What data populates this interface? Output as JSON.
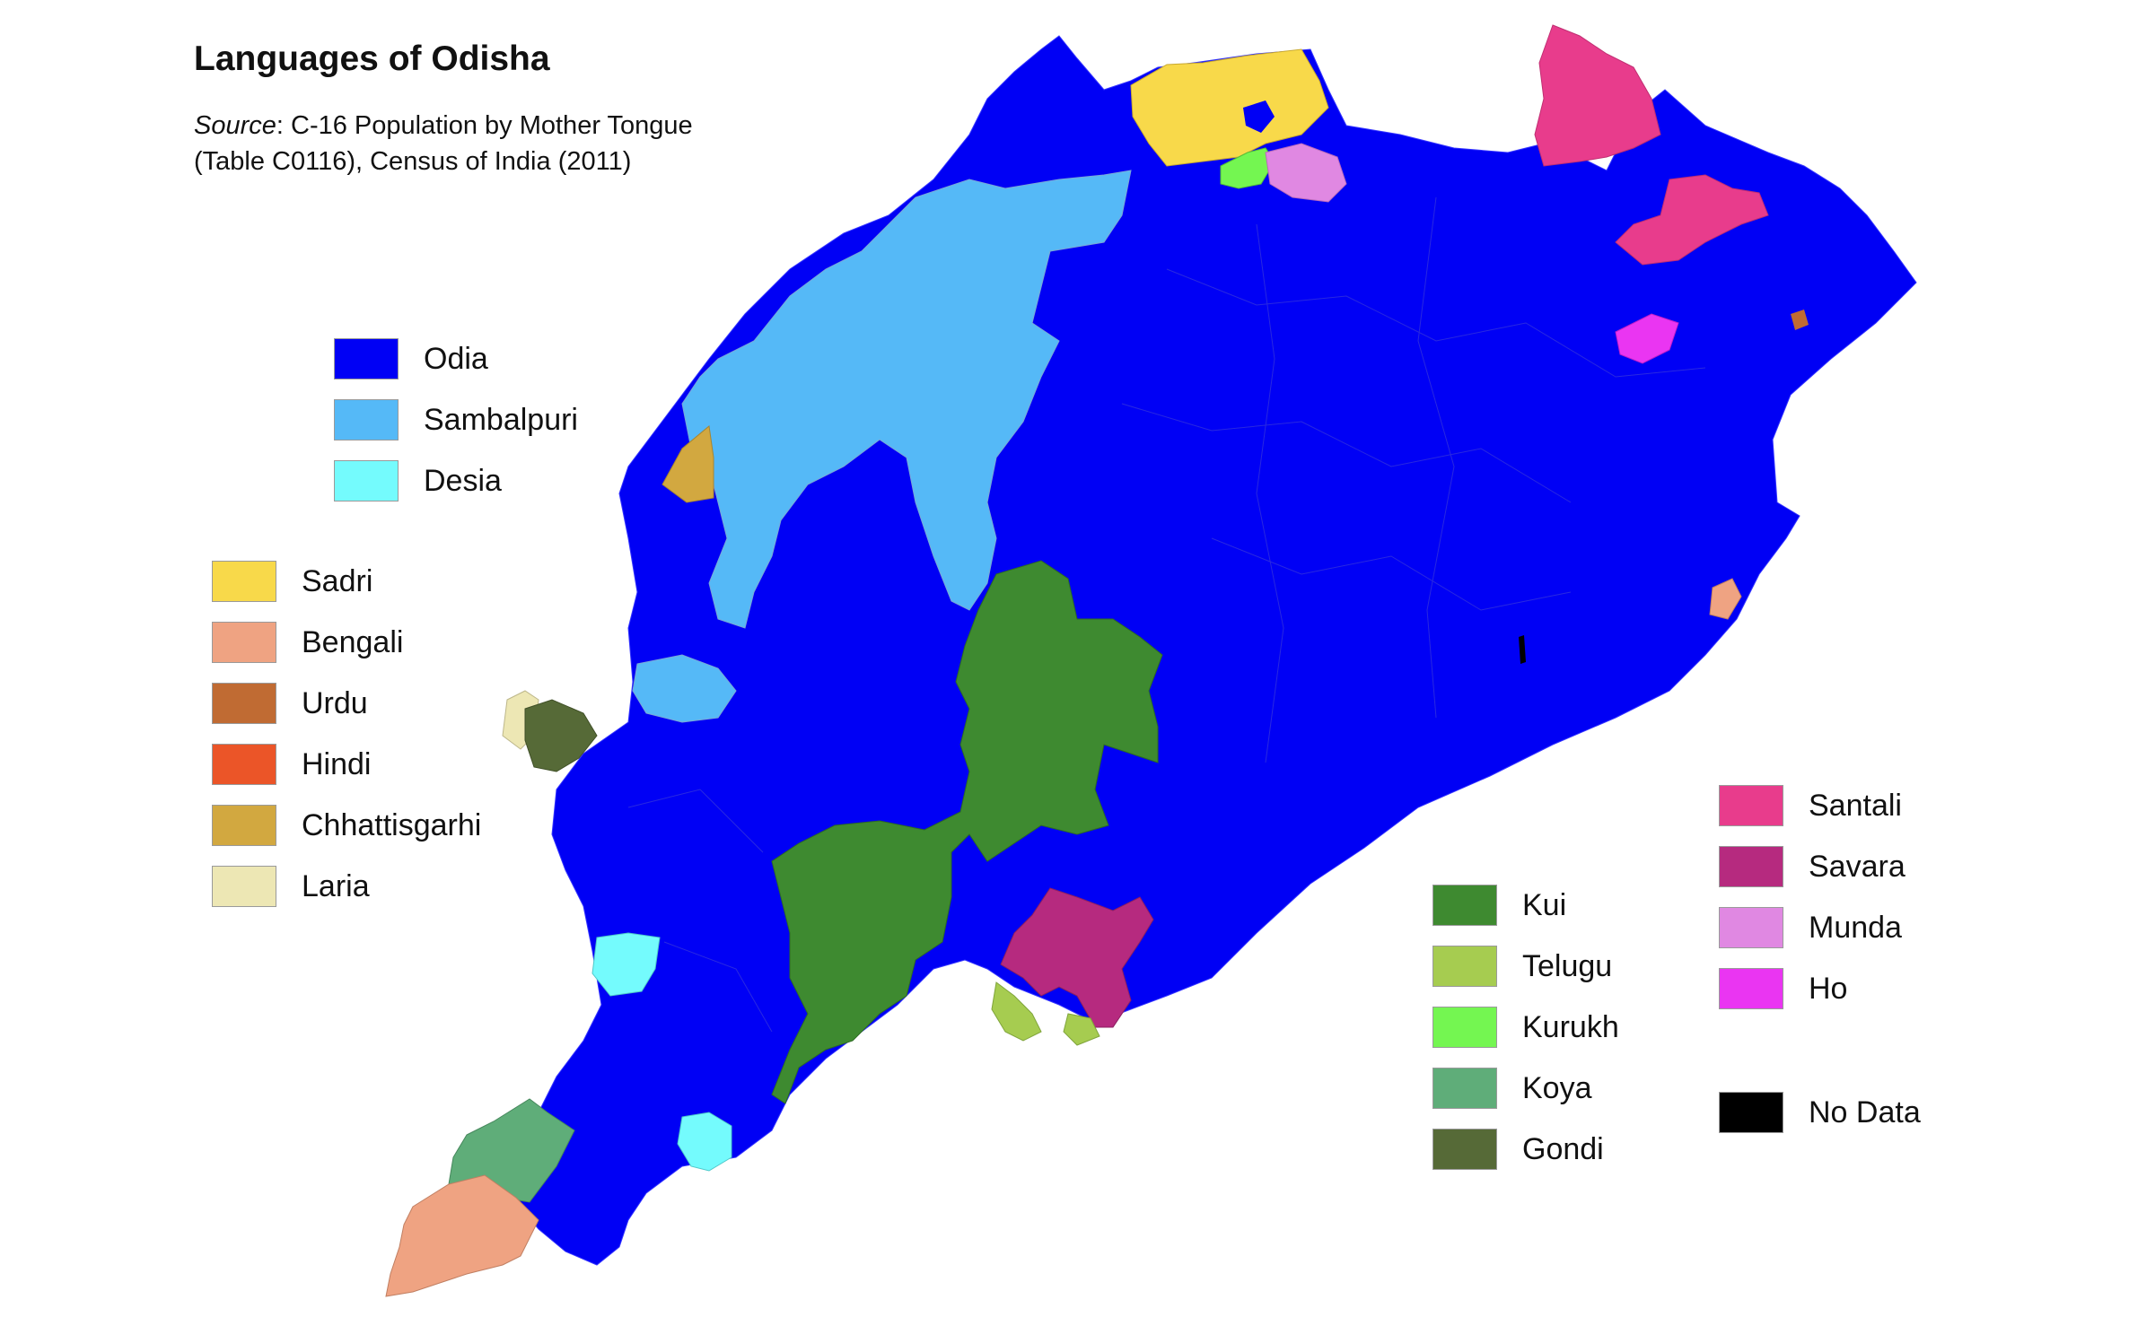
{
  "title": "Languages of Odisha",
  "source": {
    "label": "Source",
    "line1": ": C-16 Population by Mother Tongue",
    "line2": "(Table C0116), Census of India (2011)"
  },
  "legend_groups": [
    {
      "items": [
        {
          "label": "Odia",
          "color": "#0000f5"
        },
        {
          "label": "Sambalpuri",
          "color": "#55b9f7"
        },
        {
          "label": "Desia",
          "color": "#74fbfd"
        }
      ]
    },
    {
      "items": [
        {
          "label": "Sadri",
          "color": "#f8d94a"
        },
        {
          "label": "Bengali",
          "color": "#efa382"
        },
        {
          "label": "Urdu",
          "color": "#c06b33"
        },
        {
          "label": "Hindi",
          "color": "#eb5528"
        },
        {
          "label": "Chhattisgarhi",
          "color": "#d2a840"
        },
        {
          "label": "Laria",
          "color": "#ede7b4"
        }
      ]
    },
    {
      "items": [
        {
          "label": "Kui",
          "color": "#3e8a30"
        },
        {
          "label": "Telugu",
          "color": "#a6cc50"
        },
        {
          "label": "Kurukh",
          "color": "#74f651"
        },
        {
          "label": "Koya",
          "color": "#5fad79"
        },
        {
          "label": "Gondi",
          "color": "#566a37"
        }
      ]
    },
    {
      "items": [
        {
          "label": "Santali",
          "color": "#e83c8c"
        },
        {
          "label": "Savara",
          "color": "#b62a7f"
        },
        {
          "label": "Munda",
          "color": "#e088e2"
        },
        {
          "label": "Ho",
          "color": "#ea35f2"
        }
      ]
    },
    {
      "items": [
        {
          "label": "No Data",
          "color": "#000000"
        }
      ]
    }
  ]
}
